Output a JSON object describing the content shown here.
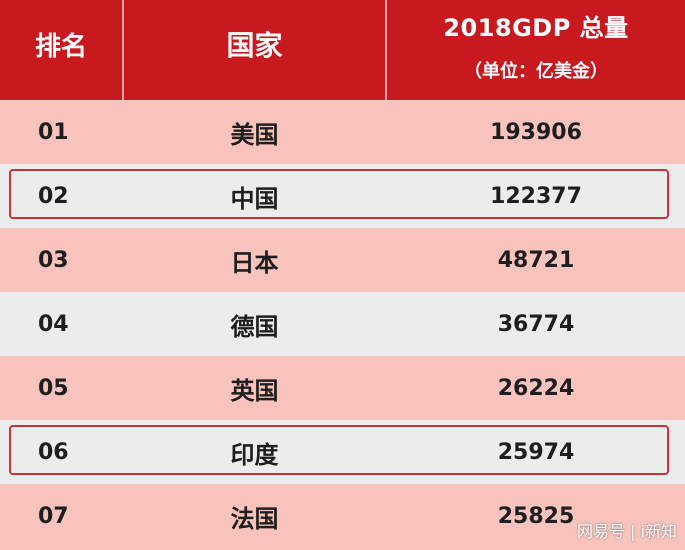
{
  "header": {
    "rank": "排名",
    "country": "国家",
    "gdp_title": "2018GDP 总量",
    "gdp_unit": "（单位：亿美金）"
  },
  "rows": [
    {
      "rank": "01",
      "country": "美国",
      "gdp": "193906"
    },
    {
      "rank": "02",
      "country": "中国",
      "gdp": "122377"
    },
    {
      "rank": "03",
      "country": "日本",
      "gdp": "48721"
    },
    {
      "rank": "04",
      "country": "德国",
      "gdp": "36774"
    },
    {
      "rank": "05",
      "country": "英国",
      "gdp": "26224"
    },
    {
      "rank": "06",
      "country": "印度",
      "gdp": "25974"
    },
    {
      "rank": "07",
      "country": "法国",
      "gdp": "25825"
    }
  ],
  "highlighted_ranks": [
    "02",
    "06"
  ],
  "watermark": "网易号 | i新知",
  "colors": {
    "header_bg": "#c8191f",
    "row_pink": "#f9c3bd",
    "row_gray": "#ececec",
    "highlight_border": "#d0323a"
  }
}
